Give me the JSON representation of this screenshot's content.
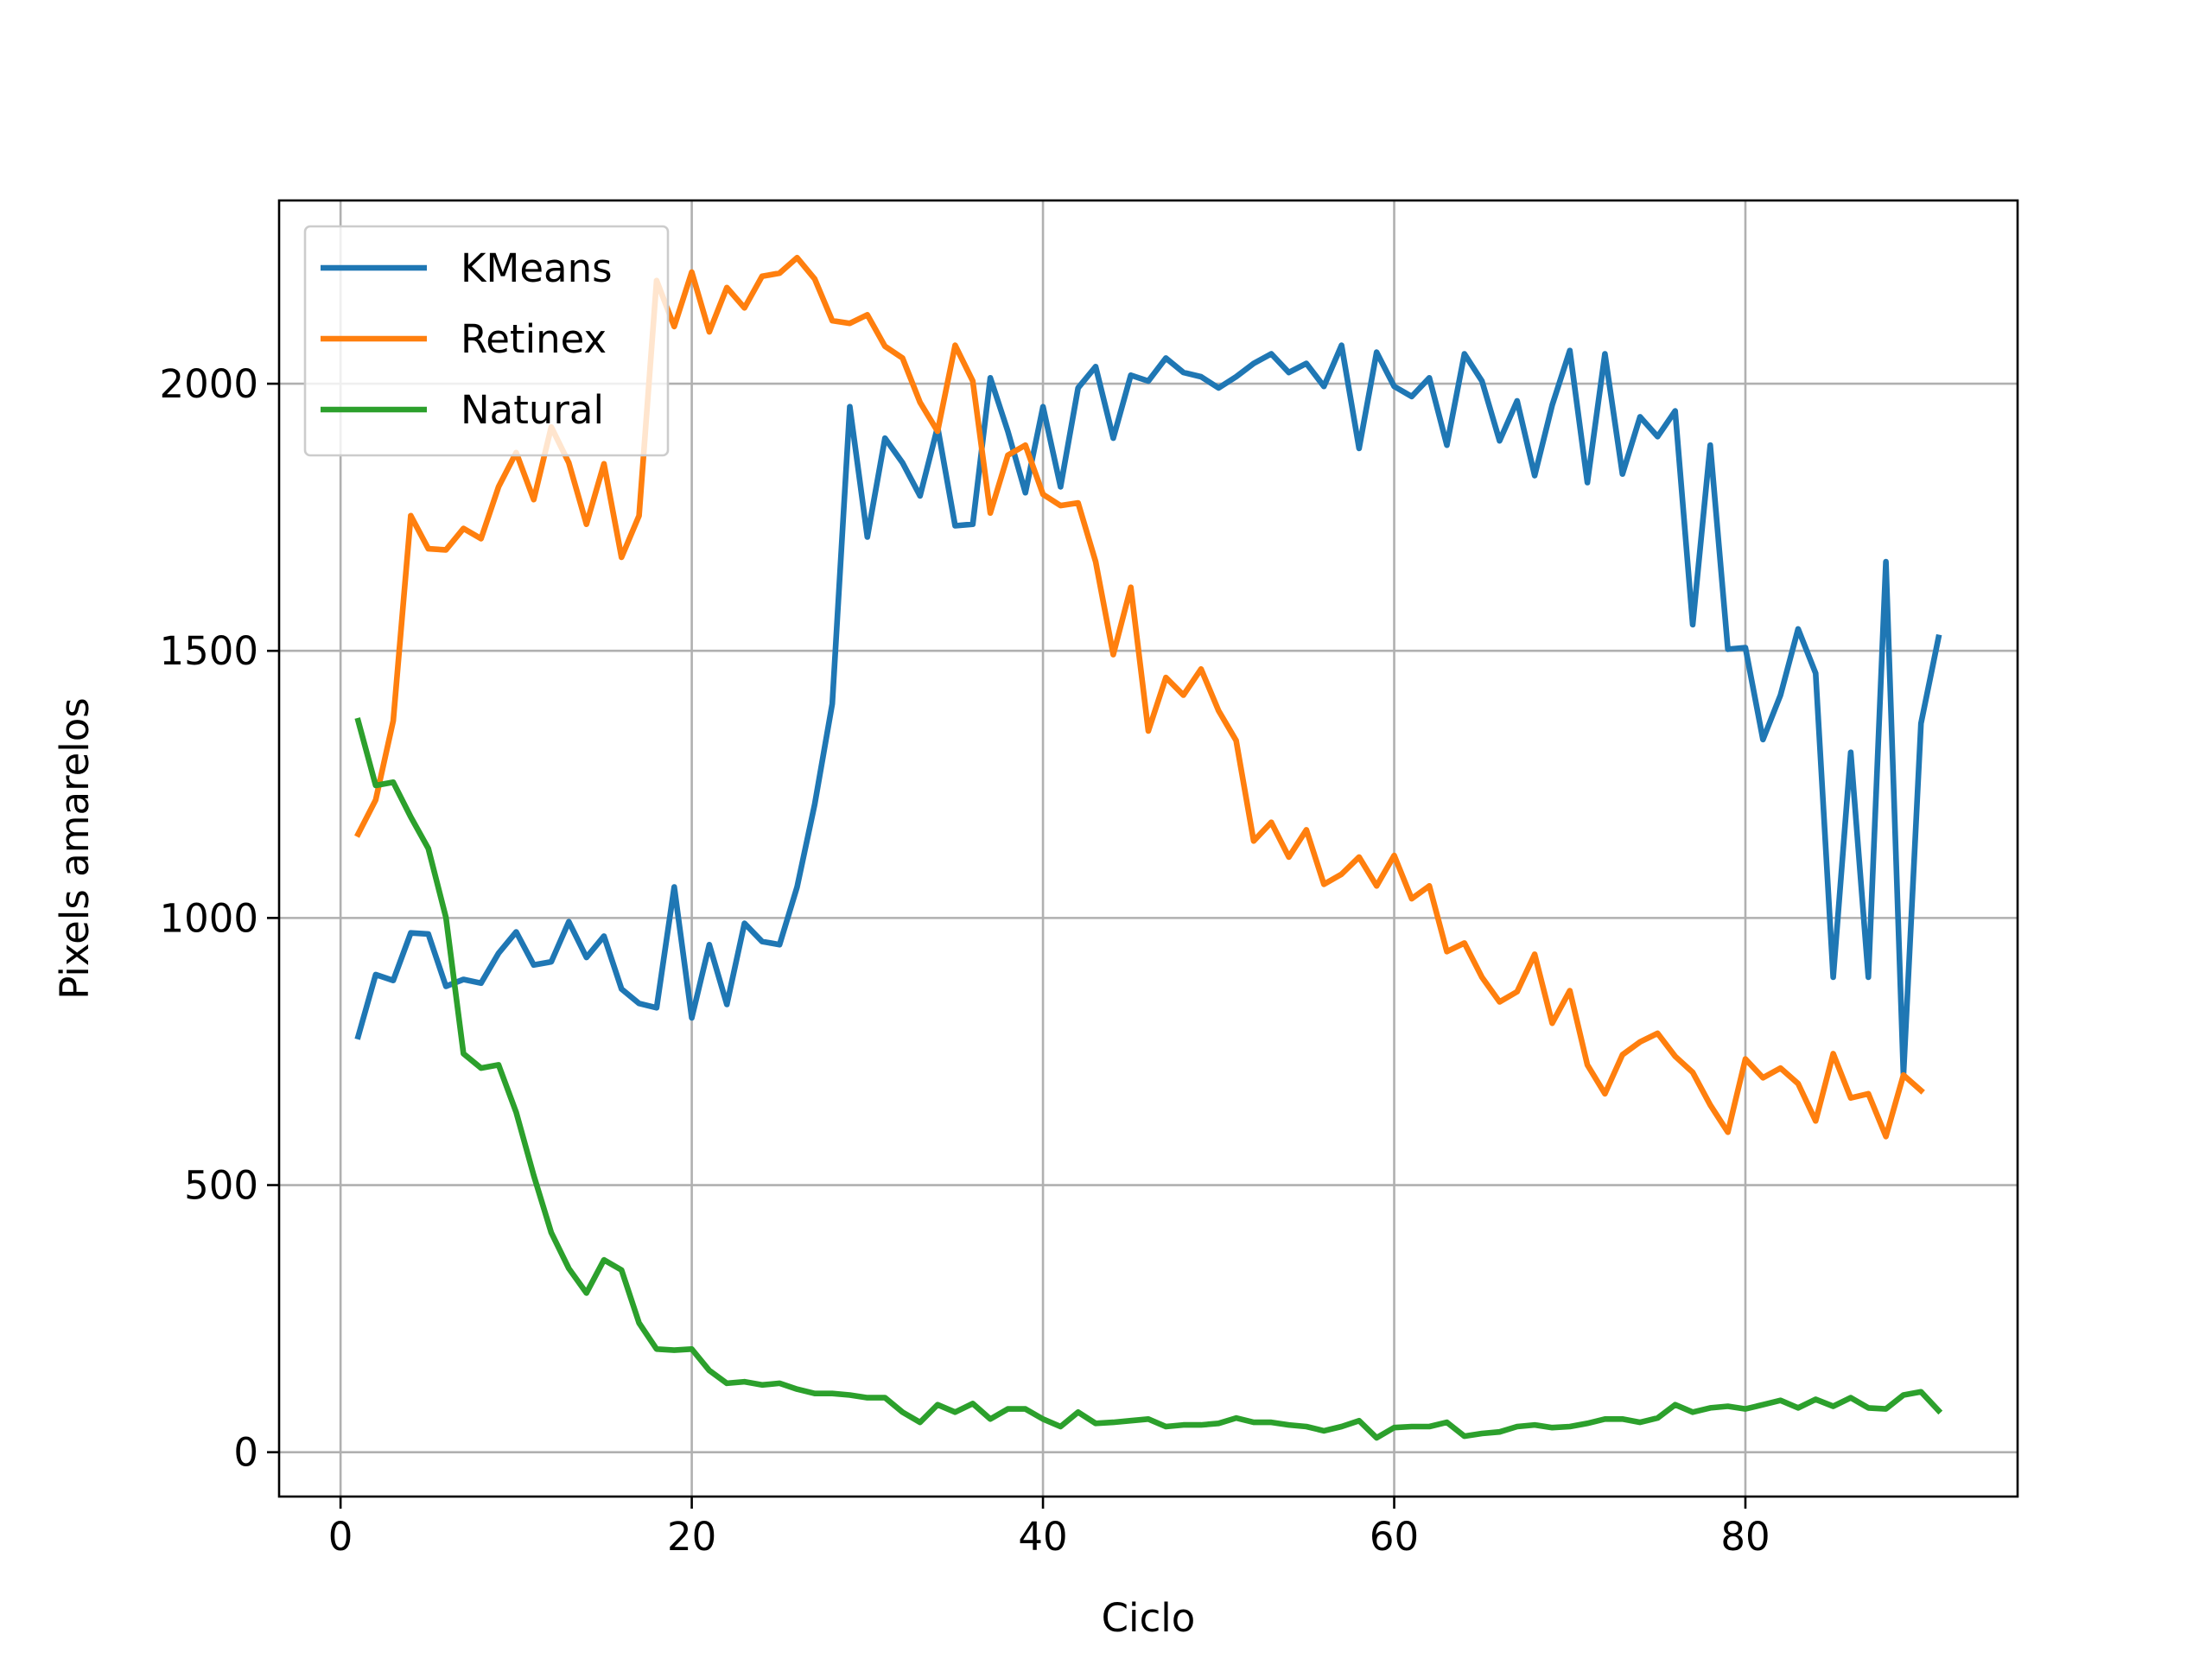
{
  "chart_data": {
    "type": "line",
    "xlabel": "Ciclo",
    "ylabel": "Pixels amarelos",
    "x": [
      1,
      2,
      3,
      4,
      5,
      6,
      7,
      8,
      9,
      10,
      11,
      12,
      13,
      14,
      15,
      16,
      17,
      18,
      19,
      20,
      21,
      22,
      23,
      24,
      25,
      26,
      27,
      28,
      29,
      30,
      31,
      32,
      33,
      34,
      35,
      36,
      37,
      38,
      39,
      40,
      41,
      42,
      43,
      44,
      45,
      46,
      47,
      48,
      49,
      50,
      51,
      52,
      53,
      54,
      55,
      56,
      57,
      58,
      59,
      60,
      61,
      62,
      63,
      64,
      65,
      66,
      67,
      68,
      69,
      70,
      71,
      72,
      73,
      74,
      75,
      76,
      77,
      78,
      79,
      80,
      81,
      82,
      83,
      84,
      85,
      86,
      87,
      88,
      89,
      90,
      91
    ],
    "series": [
      {
        "name": "KMeans",
        "color": "#1f77b4",
        "values": [
          778,
          894,
          883,
          972,
          970,
          872,
          885,
          878,
          934,
          974,
          912,
          918,
          993,
          926,
          966,
          867,
          840,
          832,
          1058,
          813,
          950,
          838,
          990,
          956,
          950,
          1058,
          1213,
          1401,
          1957,
          1713,
          1898,
          1852,
          1790,
          1919,
          1734,
          1737,
          2011,
          1911,
          1796,
          1957,
          1807,
          1992,
          2032,
          1898,
          2016,
          2005,
          2048,
          2021,
          2013,
          1992,
          2013,
          2038,
          2056,
          2021,
          2038,
          1995,
          2072,
          1879,
          2059,
          1995,
          1976,
          2011,
          1885,
          2056,
          2005,
          1893,
          1968,
          1828,
          1960,
          2062,
          1815,
          2056,
          1831,
          1938,
          1901,
          1949,
          1549,
          1885,
          1503,
          1506,
          1334,
          1417,
          1541,
          1458,
          889,
          1310,
          889,
          1667,
          706,
          1364,
          1525
        ]
      },
      {
        "name": "Retinex",
        "color": "#ff7f0e",
        "values": [
          1157,
          1221,
          1369,
          1753,
          1691,
          1689,
          1729,
          1710,
          1807,
          1871,
          1783,
          1919,
          1852,
          1737,
          1850,
          1675,
          1753,
          2193,
          2107,
          2209,
          2097,
          2180,
          2142,
          2201,
          2207,
          2236,
          2196,
          2118,
          2113,
          2129,
          2070,
          2048,
          1965,
          1911,
          2072,
          2005,
          1758,
          1866,
          1885,
          1793,
          1772,
          1777,
          1667,
          1493,
          1619,
          1350,
          1450,
          1417,
          1466,
          1388,
          1332,
          1144,
          1179,
          1114,
          1165,
          1063,
          1082,
          1114,
          1060,
          1117,
          1036,
          1060,
          937,
          953,
          889,
          843,
          862,
          932,
          803,
          864,
          725,
          671,
          744,
          768,
          784,
          741,
          711,
          650,
          599,
          736,
          701,
          719,
          690,
          620,
          746,
          663,
          671,
          591,
          706,
          677,
          null
        ]
      },
      {
        "name": "Natural",
        "color": "#2ca02c",
        "values": [
          1369,
          1248,
          1254,
          1189,
          1130,
          1001,
          746,
          719,
          725,
          636,
          518,
          411,
          344,
          298,
          360,
          341,
          242,
          193,
          191,
          193,
          153,
          129,
          132,
          126,
          129,
          118,
          110,
          110,
          107,
          102,
          102,
          75,
          56,
          89,
          75,
          91,
          62,
          81,
          81,
          62,
          48,
          75,
          54,
          56,
          59,
          62,
          48,
          51,
          51,
          54,
          64,
          56,
          56,
          51,
          48,
          40,
          48,
          59,
          27,
          46,
          48,
          48,
          56,
          30,
          35,
          38,
          48,
          51,
          46,
          48,
          54,
          62,
          62,
          56,
          64,
          89,
          75,
          83,
          86,
          81,
          89,
          97,
          83,
          99,
          86,
          102,
          83,
          81,
          107,
          113,
          78
        ]
      }
    ],
    "xlim": [
      -3.5,
      95.5
    ],
    "ylim": [
      -83,
      2343
    ],
    "xticks": [
      0,
      20,
      40,
      60,
      80
    ],
    "yticks": [
      0,
      500,
      1000,
      1500,
      2000
    ],
    "grid": true,
    "legend": "upper left"
  }
}
